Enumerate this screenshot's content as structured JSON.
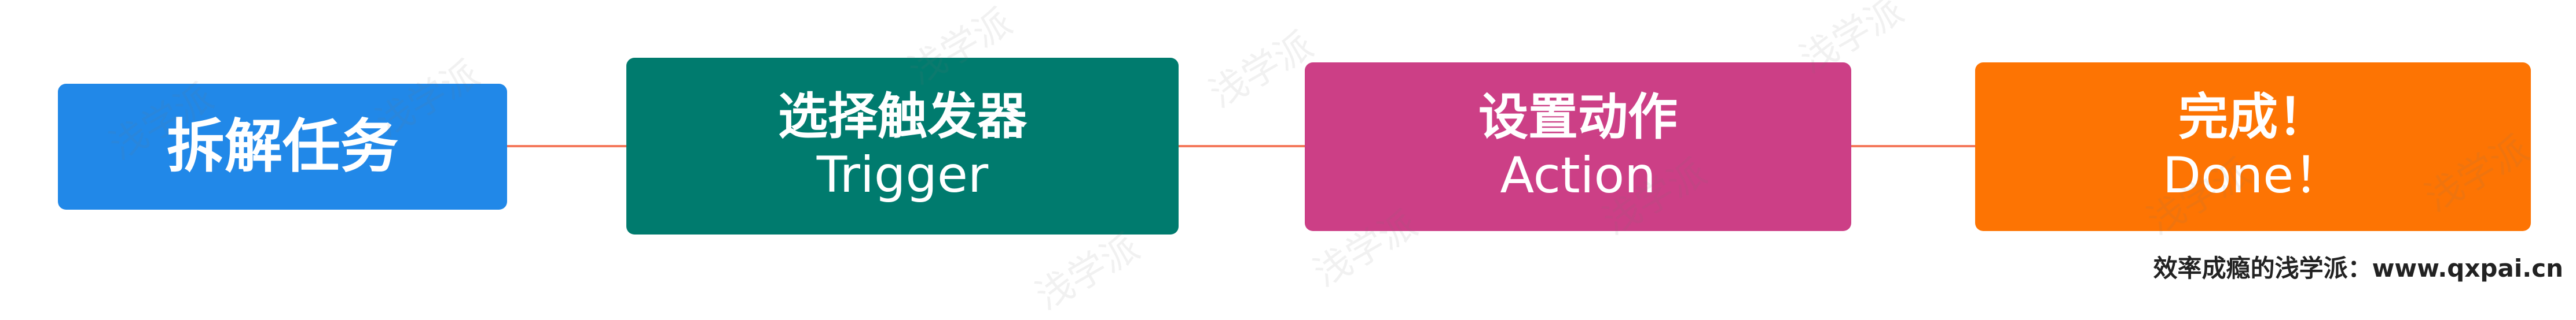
{
  "diagram": {
    "connector_color": "#f4775a",
    "steps": [
      {
        "title": "拆解任务",
        "subtitle": "",
        "color": "#2188e8"
      },
      {
        "title": "选择触发器",
        "subtitle": "Trigger",
        "color": "#007b6e"
      },
      {
        "title": "设置动作",
        "subtitle": "Action",
        "color": "#cc3f86"
      },
      {
        "title": "完成！",
        "subtitle": "Done！",
        "color": "#fd7403"
      }
    ]
  },
  "watermark_text": "浅学派",
  "footer": {
    "credit": "效率成瘾的浅学派：www.qxpai.cn"
  }
}
